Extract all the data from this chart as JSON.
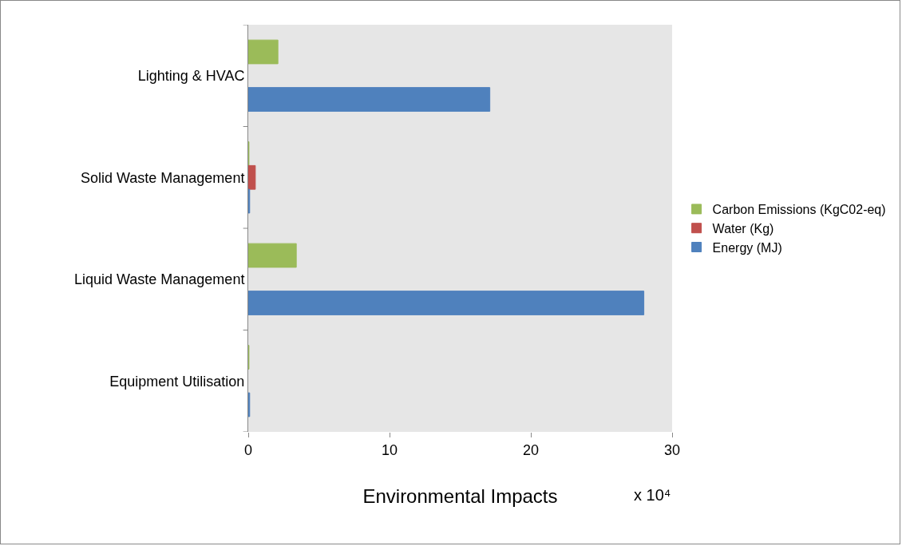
{
  "chart_data": {
    "type": "bar",
    "orientation": "horizontal",
    "xlabel": "Environmental Impacts",
    "categories": [
      "Lighting & HVAC",
      "Solid Waste Management",
      "Liquid Waste Management",
      "Equipment Utilisation"
    ],
    "series": [
      {
        "name": "Carbon Emissions (KgC02-eq)",
        "color": "#9bbb59",
        "values": [
          2.1,
          0.05,
          3.4,
          0.05
        ]
      },
      {
        "name": "Water (Kg)",
        "color": "#c0504d",
        "values": [
          null,
          0.5,
          null,
          null
        ]
      },
      {
        "name": "Energy (MJ)",
        "color": "#4f81bd",
        "values": [
          17.1,
          0.1,
          28,
          0.1
        ]
      }
    ],
    "xlim": [
      0,
      30
    ],
    "xticks": [
      0,
      10,
      20,
      30
    ],
    "grid": false,
    "legend": "right",
    "annotations": [
      "x 10⁴"
    ]
  }
}
